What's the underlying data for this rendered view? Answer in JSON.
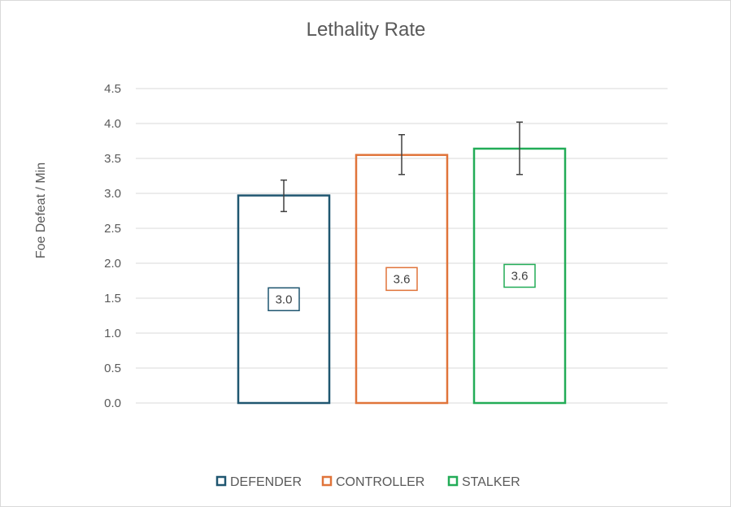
{
  "chart_data": {
    "type": "bar",
    "title": "Lethality Rate",
    "xlabel": "",
    "ylabel": "Foe Defeat / Min",
    "ylim": [
      0,
      4.5
    ],
    "yticks": [
      "0.0",
      "0.5",
      "1.0",
      "1.5",
      "2.0",
      "2.5",
      "3.0",
      "3.5",
      "4.0",
      "4.5"
    ],
    "ytick_values": [
      0,
      0.5,
      1.0,
      1.5,
      2.0,
      2.5,
      3.0,
      3.5,
      4.0,
      4.5
    ],
    "grid": true,
    "legend_position": "bottom",
    "series": [
      {
        "name": "DEFENDER",
        "value": 2.97,
        "label": "3.0",
        "error_low": 2.74,
        "error_high": 3.19,
        "color": "#1f5670"
      },
      {
        "name": "CONTROLLER",
        "value": 3.55,
        "label": "3.6",
        "error_low": 3.27,
        "error_high": 3.84,
        "color": "#e0743a"
      },
      {
        "name": "STALKER",
        "value": 3.64,
        "label": "3.6",
        "error_low": 3.27,
        "error_high": 4.02,
        "color": "#22ac57"
      }
    ]
  }
}
